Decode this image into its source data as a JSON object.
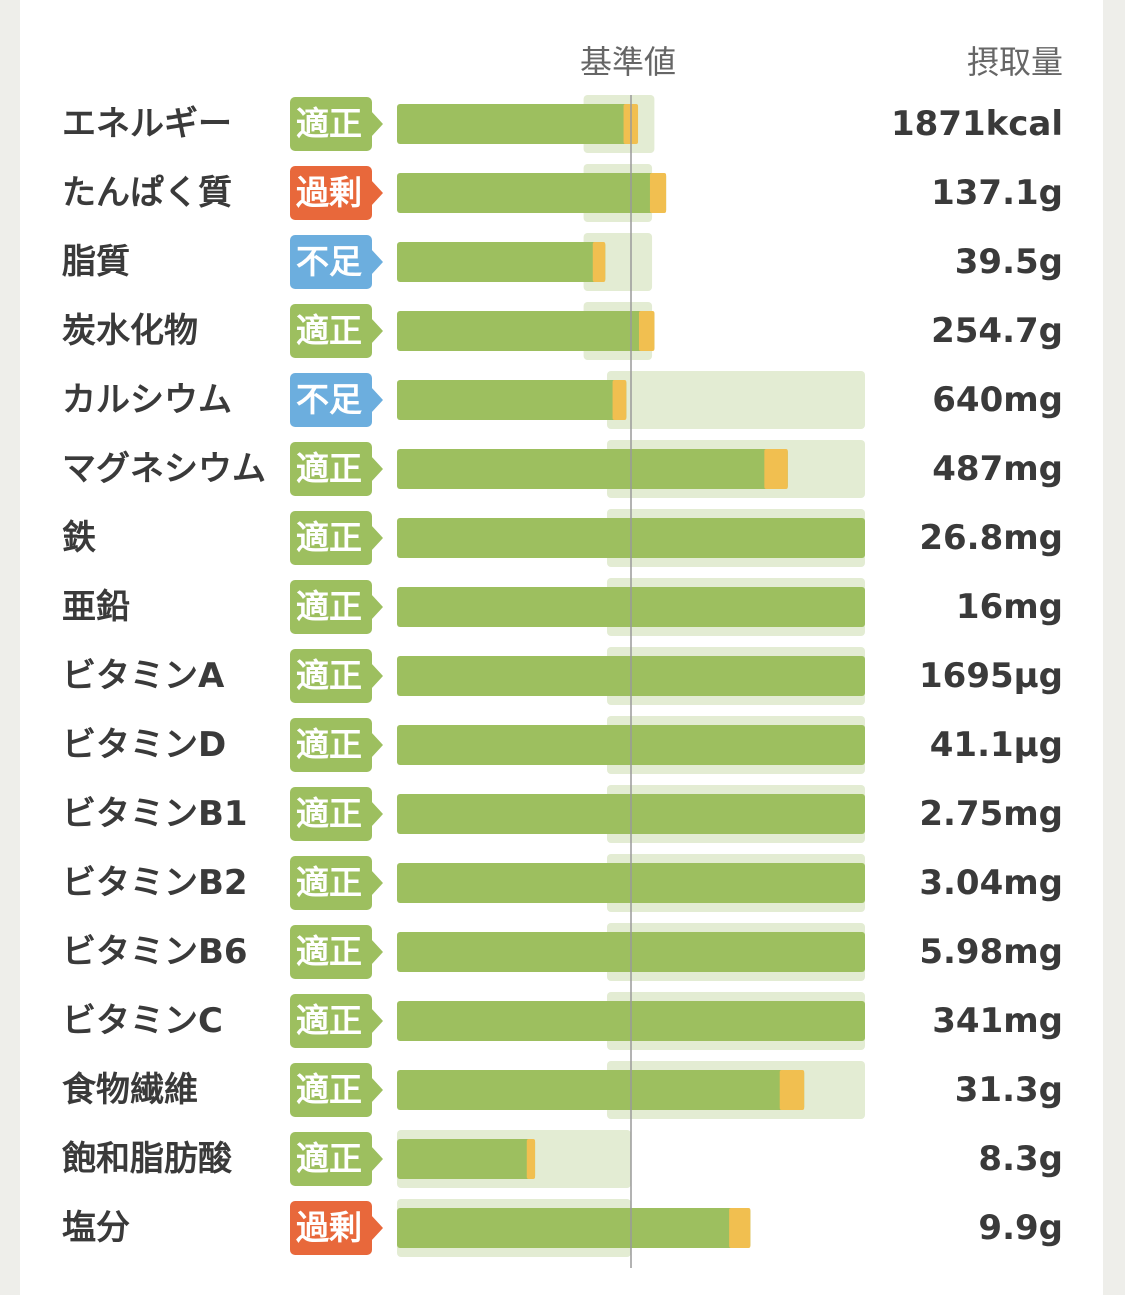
{
  "header": {
    "reference_label": "基準値",
    "intake_label": "摂取量"
  },
  "colors": {
    "main_bar": "#9dbf5f",
    "excess_bar": "#f1bf50",
    "range_bg": "#e3ecd3",
    "reference_line": "#9a9a9a",
    "status": {
      "適正": "#9dbf5f",
      "過剰": "#e8683b",
      "不足": "#6caede"
    }
  },
  "chart_data": {
    "type": "bar",
    "categories": [
      "エネルギー",
      "たんぱく質",
      "脂質",
      "炭水化物",
      "カルシウム",
      "マグネシウム",
      "鉄",
      "亜鉛",
      "ビタミンA",
      "ビタミンD",
      "ビタミンB1",
      "ビタミンB2",
      "ビタミンB6",
      "ビタミンC",
      "食物繊維",
      "飽和脂肪酸",
      "塩分"
    ],
    "intake_labels": [
      "1871kcal",
      "137.1g",
      "39.5g",
      "254.7g",
      "640mg",
      "487mg",
      "26.8mg",
      "16mg",
      "1695µg",
      "41.1µg",
      "2.75mg",
      "3.04mg",
      "5.98mg",
      "341mg",
      "31.3g",
      "8.3g",
      "9.9g"
    ],
    "status": [
      "適正",
      "過剰",
      "不足",
      "適正",
      "不足",
      "適正",
      "適正",
      "適正",
      "適正",
      "適正",
      "適正",
      "適正",
      "適正",
      "適正",
      "適正",
      "適正",
      "過剰"
    ],
    "percent_of_reference": [
      103,
      115,
      89,
      110,
      98,
      167,
      200,
      200,
      200,
      200,
      200,
      200,
      200,
      200,
      174,
      59,
      151
    ],
    "reference_range_percent": [
      [
        90,
        110
      ],
      [
        90,
        109
      ],
      [
        90,
        109
      ],
      [
        90,
        109
      ],
      [
        100,
        200
      ],
      [
        100,
        200
      ],
      [
        100,
        200
      ],
      [
        100,
        200
      ],
      [
        100,
        200
      ],
      [
        100,
        200
      ],
      [
        100,
        200
      ],
      [
        100,
        200
      ],
      [
        100,
        200
      ],
      [
        100,
        200
      ],
      [
        100,
        200
      ],
      [
        0,
        100
      ],
      [
        0,
        100
      ]
    ],
    "reference_line_percent": 100,
    "xlim_percent": [
      0,
      200
    ]
  }
}
